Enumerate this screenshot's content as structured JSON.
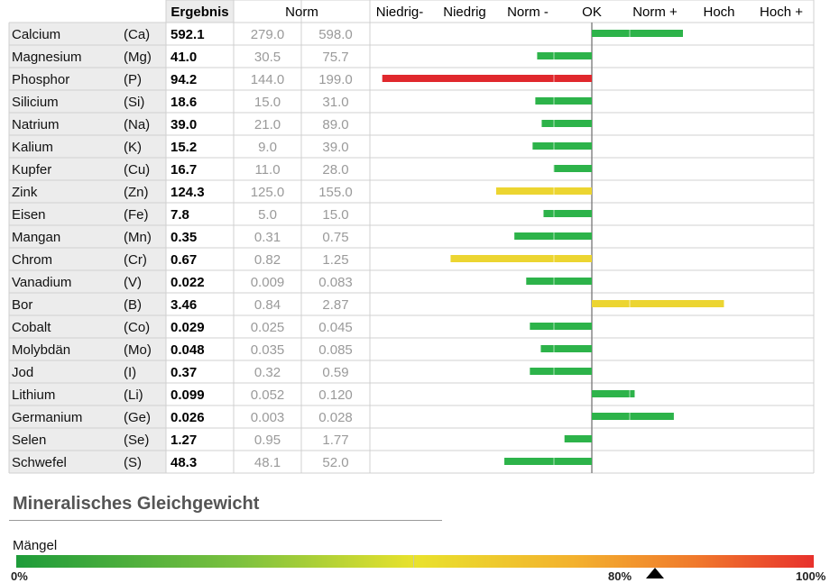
{
  "chart_data": {
    "type": "bar",
    "headers": {
      "result": "Ergebnis",
      "norm": "Norm",
      "categories": [
        "Niedrig-",
        "Niedrig",
        "Norm -",
        "OK",
        "Norm +",
        "Hoch",
        "Hoch +"
      ]
    },
    "rows": [
      {
        "name": "Calcium",
        "symbol": "(Ca)",
        "result": "592.1",
        "norm_low": "279.0",
        "norm_high": "598.0",
        "deviation": 1.0,
        "color": "#2db34a"
      },
      {
        "name": "Magnesium",
        "symbol": "(Mg)",
        "result": "41.0",
        "norm_low": "30.5",
        "norm_high": "75.7",
        "deviation": -0.6,
        "color": "#2db34a"
      },
      {
        "name": "Phosphor",
        "symbol": "(P)",
        "result": "94.2",
        "norm_low": "144.0",
        "norm_high": "199.0",
        "deviation": -2.3,
        "color": "#e0282d"
      },
      {
        "name": "Silicium",
        "symbol": "(Si)",
        "result": "18.6",
        "norm_low": "15.0",
        "norm_high": "31.0",
        "deviation": -0.62,
        "color": "#2db34a"
      },
      {
        "name": "Natrium",
        "symbol": "(Na)",
        "result": "39.0",
        "norm_low": "21.0",
        "norm_high": "89.0",
        "deviation": -0.55,
        "color": "#2db34a"
      },
      {
        "name": "Kalium",
        "symbol": "(K)",
        "result": "15.2",
        "norm_low": "9.0",
        "norm_high": "39.0",
        "deviation": -0.65,
        "color": "#2db34a"
      },
      {
        "name": "Kupfer",
        "symbol": "(Cu)",
        "result": "16.7",
        "norm_low": "11.0",
        "norm_high": "28.0",
        "deviation": -0.42,
        "color": "#2db34a"
      },
      {
        "name": "Zink",
        "symbol": "(Zn)",
        "result": "124.3",
        "norm_low": "125.0",
        "norm_high": "155.0",
        "deviation": -1.05,
        "color": "#ecd531"
      },
      {
        "name": "Eisen",
        "symbol": "(Fe)",
        "result": "7.8",
        "norm_low": "5.0",
        "norm_high": "15.0",
        "deviation": -0.53,
        "color": "#2db34a"
      },
      {
        "name": "Mangan",
        "symbol": "(Mn)",
        "result": "0.35",
        "norm_low": "0.31",
        "norm_high": "0.75",
        "deviation": -0.85,
        "color": "#2db34a"
      },
      {
        "name": "Chrom",
        "symbol": "(Cr)",
        "result": "0.67",
        "norm_low": "0.82",
        "norm_high": "1.25",
        "deviation": -1.55,
        "color": "#ecd531"
      },
      {
        "name": "Vanadium",
        "symbol": "(V)",
        "result": "0.022",
        "norm_low": "0.009",
        "norm_high": "0.083",
        "deviation": -0.72,
        "color": "#2db34a"
      },
      {
        "name": "Bor",
        "symbol": "(B)",
        "result": "3.46",
        "norm_low": "0.84",
        "norm_high": "2.87",
        "deviation": 1.45,
        "color": "#ecd531"
      },
      {
        "name": "Cobalt",
        "symbol": "(Co)",
        "result": "0.029",
        "norm_low": "0.025",
        "norm_high": "0.045",
        "deviation": -0.68,
        "color": "#2db34a"
      },
      {
        "name": "Molybdän",
        "symbol": "(Mo)",
        "result": "0.048",
        "norm_low": "0.035",
        "norm_high": "0.085",
        "deviation": -0.56,
        "color": "#2db34a"
      },
      {
        "name": "Jod",
        "symbol": "(I)",
        "result": "0.37",
        "norm_low": "0.32",
        "norm_high": "0.59",
        "deviation": -0.68,
        "color": "#2db34a"
      },
      {
        "name": "Lithium",
        "symbol": "(Li)",
        "result": "0.099",
        "norm_low": "0.052",
        "norm_high": "0.120",
        "deviation": 0.47,
        "color": "#2db34a"
      },
      {
        "name": "Germanium",
        "symbol": "(Ge)",
        "result": "0.026",
        "norm_low": "0.003",
        "norm_high": "0.028",
        "deviation": 0.9,
        "color": "#2db34a"
      },
      {
        "name": "Selen",
        "symbol": "(Se)",
        "result": "1.27",
        "norm_low": "0.95",
        "norm_high": "1.77",
        "deviation": -0.3,
        "color": "#2db34a"
      },
      {
        "name": "Schwefel",
        "symbol": "(S)",
        "result": "48.3",
        "norm_low": "48.1",
        "norm_high": "52.0",
        "deviation": -0.96,
        "color": "#2db34a"
      }
    ]
  },
  "balance": {
    "title": "Mineralisches Gleichgewicht",
    "label": "Mängel",
    "scale_min": "0%",
    "scale_mid": "80%",
    "scale_max": "100%",
    "marker_value": 80
  }
}
